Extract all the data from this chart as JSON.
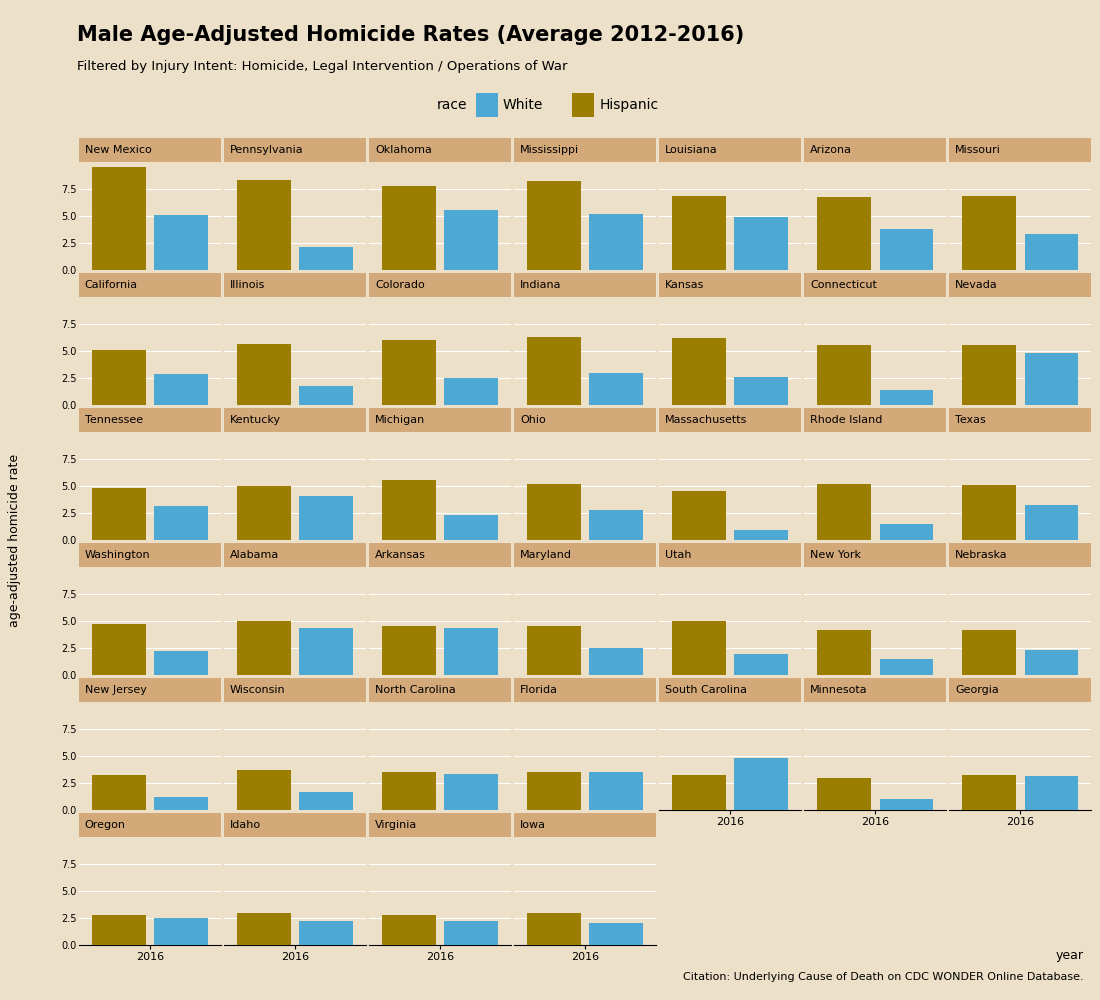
{
  "title": "Male Age-Adjusted Homicide Rates (Average 2012-2016)",
  "subtitle": "Filtered by Injury Intent: Homicide, Legal Intervention / Operations of War",
  "ylabel": "age-adjusted homicide rate",
  "xlabel": "year",
  "citation": "Citation: Underlying Cause of Death on CDC WONDER Online Database.",
  "bg_color": "#EDE0C8",
  "header_color": "#D4A97A",
  "white_color": "#4EA8D4",
  "hispanic_color": "#9B7D00",
  "yticks": [
    0.0,
    2.5,
    5.0,
    7.5
  ],
  "states_grid": [
    [
      "New Mexico",
      "Pennsylvania",
      "Oklahoma",
      "Mississippi",
      "Louisiana",
      "Arizona",
      "Missouri"
    ],
    [
      "California",
      "Illinois",
      "Colorado",
      "Indiana",
      "Kansas",
      "Connecticut",
      "Nevada"
    ],
    [
      "Tennessee",
      "Kentucky",
      "Michigan",
      "Ohio",
      "Massachusetts",
      "Rhode Island",
      "Texas"
    ],
    [
      "Washington",
      "Alabama",
      "Arkansas",
      "Maryland",
      "Utah",
      "New York",
      "Nebraska"
    ],
    [
      "New Jersey",
      "Wisconsin",
      "North Carolina",
      "Florida",
      "South Carolina",
      "Minnesota",
      "Georgia"
    ],
    [
      "Oregon",
      "Idaho",
      "Virginia",
      "Iowa",
      null,
      null,
      null
    ]
  ],
  "data": {
    "New Mexico": [
      9.5,
      5.1
    ],
    "Pennsylvania": [
      8.3,
      2.1
    ],
    "Oklahoma": [
      7.8,
      5.5
    ],
    "Mississippi": [
      8.2,
      5.2
    ],
    "Louisiana": [
      6.8,
      4.9
    ],
    "Arizona": [
      6.7,
      3.8
    ],
    "Missouri": [
      6.8,
      3.3
    ],
    "California": [
      5.1,
      2.9
    ],
    "Illinois": [
      5.6,
      1.8
    ],
    "Colorado": [
      6.0,
      2.5
    ],
    "Indiana": [
      6.3,
      3.0
    ],
    "Kansas": [
      6.2,
      2.6
    ],
    "Connecticut": [
      5.5,
      1.4
    ],
    "Nevada": [
      5.5,
      4.8
    ],
    "Tennessee": [
      4.8,
      3.1
    ],
    "Kentucky": [
      5.0,
      4.1
    ],
    "Michigan": [
      5.5,
      2.3
    ],
    "Ohio": [
      5.2,
      2.8
    ],
    "Massachusetts": [
      4.5,
      0.9
    ],
    "Rhode Island": [
      5.2,
      1.5
    ],
    "Texas": [
      5.1,
      3.2
    ],
    "Washington": [
      4.7,
      2.2
    ],
    "Alabama": [
      5.0,
      4.3
    ],
    "Arkansas": [
      4.5,
      4.3
    ],
    "Maryland": [
      4.5,
      2.5
    ],
    "Utah": [
      5.0,
      1.9
    ],
    "New York": [
      4.2,
      1.5
    ],
    "Nebraska": [
      4.2,
      2.3
    ],
    "New Jersey": [
      3.2,
      1.2
    ],
    "Wisconsin": [
      3.7,
      1.7
    ],
    "North Carolina": [
      3.5,
      3.3
    ],
    "Florida": [
      3.5,
      3.5
    ],
    "South Carolina": [
      3.2,
      4.8
    ],
    "Minnesota": [
      3.0,
      1.0
    ],
    "Georgia": [
      3.2,
      3.1
    ],
    "Oregon": [
      2.8,
      2.5
    ],
    "Idaho": [
      3.0,
      2.2
    ],
    "Virginia": [
      2.8,
      2.2
    ],
    "Iowa": [
      3.0,
      2.0
    ]
  }
}
